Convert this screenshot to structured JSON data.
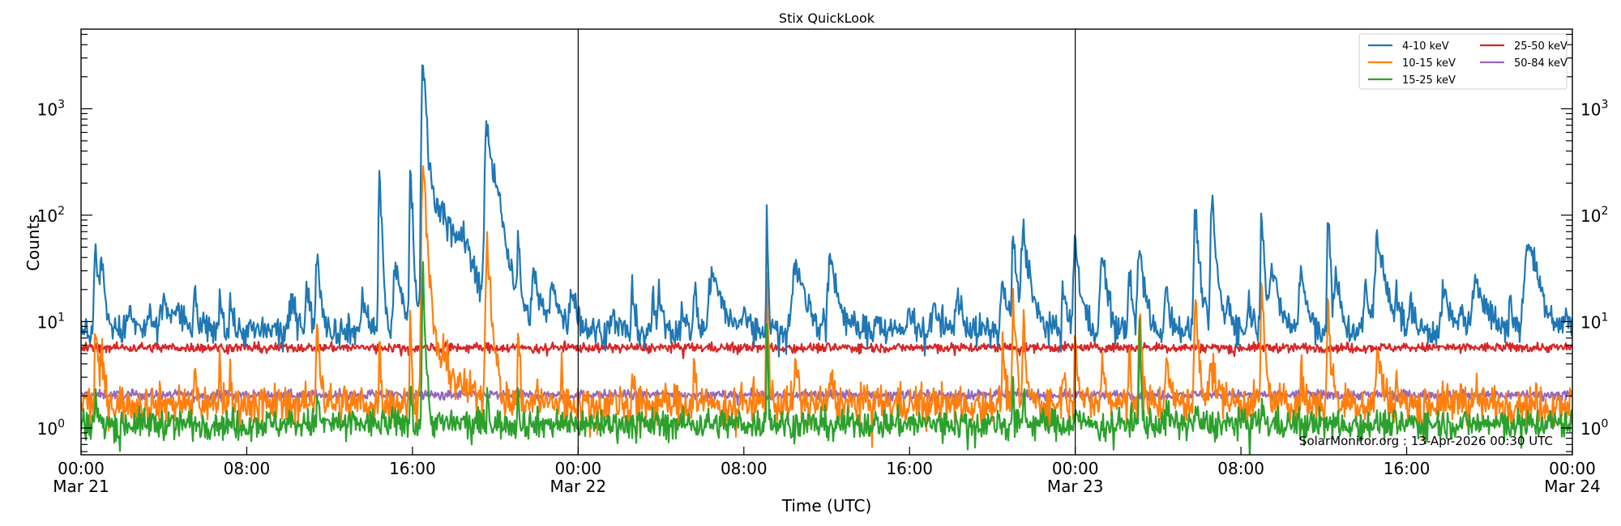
{
  "chart_data": {
    "type": "line",
    "title": "Stix QuickLook",
    "xlabel": "Time (UTC)",
    "ylabel": "Counts",
    "yscale": "log",
    "ylim": [
      0.56,
      5600
    ],
    "xlim_hours": [
      0,
      72
    ],
    "grid": false,
    "legend_position": "upper right",
    "annotation": "SolarMonitor.org : 13-Apr-2026 00:30 UTC",
    "x_ticks": [
      {
        "hour": 0,
        "label": "00:00",
        "sublabel": "Mar 21"
      },
      {
        "hour": 8,
        "label": "08:00",
        "sublabel": ""
      },
      {
        "hour": 16,
        "label": "16:00",
        "sublabel": ""
      },
      {
        "hour": 24,
        "label": "00:00",
        "sublabel": "Mar 22"
      },
      {
        "hour": 32,
        "label": "08:00",
        "sublabel": ""
      },
      {
        "hour": 40,
        "label": "16:00",
        "sublabel": ""
      },
      {
        "hour": 48,
        "label": "00:00",
        "sublabel": "Mar 23"
      },
      {
        "hour": 56,
        "label": "08:00",
        "sublabel": ""
      },
      {
        "hour": 64,
        "label": "16:00",
        "sublabel": ""
      },
      {
        "hour": 72,
        "label": "00:00",
        "sublabel": "Mar 24"
      }
    ],
    "y_ticks": [
      {
        "value": 1,
        "base": "10",
        "exp": "0"
      },
      {
        "value": 10,
        "base": "10",
        "exp": "1"
      },
      {
        "value": 100,
        "base": "10",
        "exp": "2"
      },
      {
        "value": 1000,
        "base": "10",
        "exp": "3"
      }
    ],
    "day_boundaries_hours": [
      24,
      48
    ],
    "series": [
      {
        "name": "4-10 keV",
        "color": "#1f77b4",
        "baseline": 8.2,
        "noise": 0.07,
        "peaks": [
          [
            0.7,
            50,
            0.15
          ],
          [
            1.0,
            30,
            0.15
          ],
          [
            2.3,
            13,
            0.2
          ],
          [
            3.3,
            12,
            0.2
          ],
          [
            4.0,
            14,
            0.4
          ],
          [
            4.6,
            12,
            0.4
          ],
          [
            5.5,
            19,
            0.1
          ],
          [
            6.7,
            19,
            0.1
          ],
          [
            7.2,
            17,
            0.1
          ],
          [
            10.2,
            15,
            0.3
          ],
          [
            10.9,
            21,
            0.15
          ],
          [
            11.4,
            42,
            0.15
          ],
          [
            13.6,
            20,
            0.15
          ],
          [
            14.4,
            300,
            0.08
          ],
          [
            15.2,
            35,
            0.25
          ],
          [
            15.9,
            330,
            0.08
          ],
          [
            16.5,
            3300,
            0.12
          ],
          [
            16.9,
            120,
            0.6
          ],
          [
            17.5,
            70,
            0.8
          ],
          [
            18.4,
            40,
            0.5
          ],
          [
            19.6,
            780,
            0.2
          ],
          [
            20.1,
            120,
            0.4
          ],
          [
            21.1,
            50,
            0.08
          ],
          [
            21.9,
            25,
            0.3
          ],
          [
            22.8,
            22,
            0.3
          ],
          [
            23.7,
            22,
            0.2
          ],
          [
            25.6,
            12,
            0.2
          ],
          [
            26.6,
            20,
            0.1
          ],
          [
            27.6,
            18,
            0.1
          ],
          [
            27.9,
            17,
            0.15
          ],
          [
            29.0,
            16,
            0.1
          ],
          [
            29.6,
            25,
            0.1
          ],
          [
            30.5,
            32,
            0.35
          ],
          [
            32.0,
            13,
            0.2
          ],
          [
            33.1,
            105,
            0.05
          ],
          [
            34.5,
            35,
            0.4
          ],
          [
            36.2,
            38,
            0.3
          ],
          [
            38.4,
            13,
            0.15
          ],
          [
            40.0,
            16,
            0.2
          ],
          [
            41.2,
            15,
            0.2
          ],
          [
            42.3,
            20,
            0.2
          ],
          [
            44.5,
            24,
            0.2
          ],
          [
            45.0,
            70,
            0.12
          ],
          [
            45.5,
            73,
            0.25
          ],
          [
            47.4,
            20,
            0.15
          ],
          [
            48.0,
            55,
            0.2
          ],
          [
            49.3,
            45,
            0.2
          ],
          [
            50.6,
            35,
            0.1
          ],
          [
            51.1,
            50,
            0.2
          ],
          [
            52.4,
            20,
            0.2
          ],
          [
            53.8,
            110,
            0.15
          ],
          [
            54.6,
            140,
            0.15
          ],
          [
            55.4,
            18,
            0.15
          ],
          [
            56.4,
            15,
            0.2
          ],
          [
            57.0,
            130,
            0.1
          ],
          [
            57.5,
            30,
            0.3
          ],
          [
            58.9,
            32,
            0.2
          ],
          [
            60.2,
            100,
            0.1
          ],
          [
            60.6,
            30,
            0.15
          ],
          [
            62.0,
            22,
            0.15
          ],
          [
            62.6,
            60,
            0.3
          ],
          [
            63.5,
            26,
            0.1
          ],
          [
            64.2,
            16,
            0.15
          ],
          [
            65.8,
            18,
            0.3
          ],
          [
            66.6,
            16,
            0.1
          ],
          [
            67.4,
            26,
            0.4
          ],
          [
            69.0,
            20,
            0.1
          ],
          [
            69.9,
            60,
            0.4
          ],
          [
            71.7,
            13,
            0.1
          ]
        ]
      },
      {
        "name": "10-15 keV",
        "color": "#ff7f0e",
        "baseline": 1.7,
        "noise": 0.09,
        "peaks": [
          [
            0.7,
            10,
            0.1
          ],
          [
            1.0,
            5,
            0.1
          ],
          [
            5.5,
            4.5,
            0.06
          ],
          [
            6.7,
            4.2,
            0.06
          ],
          [
            7.2,
            3.5,
            0.06
          ],
          [
            11.4,
            12,
            0.1
          ],
          [
            14.4,
            7,
            0.06
          ],
          [
            15.9,
            11,
            0.06
          ],
          [
            16.5,
            330,
            0.12
          ],
          [
            16.9,
            5,
            0.6
          ],
          [
            17.5,
            3.5,
            0.8
          ],
          [
            19.6,
            55,
            0.15
          ],
          [
            21.1,
            9,
            0.06
          ],
          [
            22.0,
            3.2,
            0.05
          ],
          [
            23.2,
            4,
            0.05
          ],
          [
            26.6,
            3.5,
            0.06
          ],
          [
            29.6,
            6,
            0.06
          ],
          [
            33.1,
            38,
            0.05
          ],
          [
            34.5,
            4.5,
            0.1
          ],
          [
            36.2,
            4,
            0.1
          ],
          [
            44.5,
            6,
            0.1
          ],
          [
            45.0,
            20,
            0.08
          ],
          [
            45.5,
            10,
            0.1
          ],
          [
            47.4,
            4.5,
            0.08
          ],
          [
            48.0,
            9,
            0.1
          ],
          [
            49.3,
            5,
            0.1
          ],
          [
            50.6,
            7,
            0.06
          ],
          [
            51.1,
            11,
            0.1
          ],
          [
            52.4,
            6,
            0.1
          ],
          [
            53.8,
            18,
            0.1
          ],
          [
            54.5,
            4,
            0.3
          ],
          [
            57.0,
            22,
            0.1
          ],
          [
            58.9,
            4.5,
            0.06
          ],
          [
            60.2,
            14,
            0.1
          ],
          [
            62.6,
            6,
            0.15
          ],
          [
            63.5,
            3.4,
            0.05
          ],
          [
            66.6,
            3.3,
            0.05
          ],
          [
            67.4,
            3.2,
            0.05
          ]
        ]
      },
      {
        "name": "15-25 keV",
        "color": "#2ca02c",
        "baseline": 1.1,
        "noise": 0.07,
        "peaks": [
          [
            0.7,
            2.5,
            0.05
          ],
          [
            11.4,
            2.6,
            0.05
          ],
          [
            15.9,
            3,
            0.05
          ],
          [
            16.5,
            30,
            0.08
          ],
          [
            19.6,
            2.6,
            0.06
          ],
          [
            21.1,
            2.5,
            0.05
          ],
          [
            33.1,
            13,
            0.04
          ],
          [
            45.0,
            2.6,
            0.05
          ],
          [
            45.5,
            3,
            0.05
          ],
          [
            48.0,
            2,
            0.06
          ],
          [
            51.1,
            10,
            0.05
          ],
          [
            52.4,
            2,
            0.06
          ],
          [
            53.8,
            1.8,
            0.06
          ],
          [
            57.0,
            2.0,
            0.06
          ]
        ]
      },
      {
        "name": "25-50 keV",
        "color": "#d62728",
        "baseline": 5.7,
        "noise": 0.022,
        "peaks": []
      },
      {
        "name": "50-84 keV",
        "color": "#9467bd",
        "baseline": 2.05,
        "noise": 0.022,
        "peaks": []
      }
    ]
  },
  "legend": {
    "items": [
      {
        "label": "4-10 keV",
        "color": "#1f77b4"
      },
      {
        "label": "10-15 keV",
        "color": "#ff7f0e"
      },
      {
        "label": "15-25 keV",
        "color": "#2ca02c"
      },
      {
        "label": "25-50 keV",
        "color": "#d62728"
      },
      {
        "label": "50-84 keV",
        "color": "#9467bd"
      }
    ]
  }
}
